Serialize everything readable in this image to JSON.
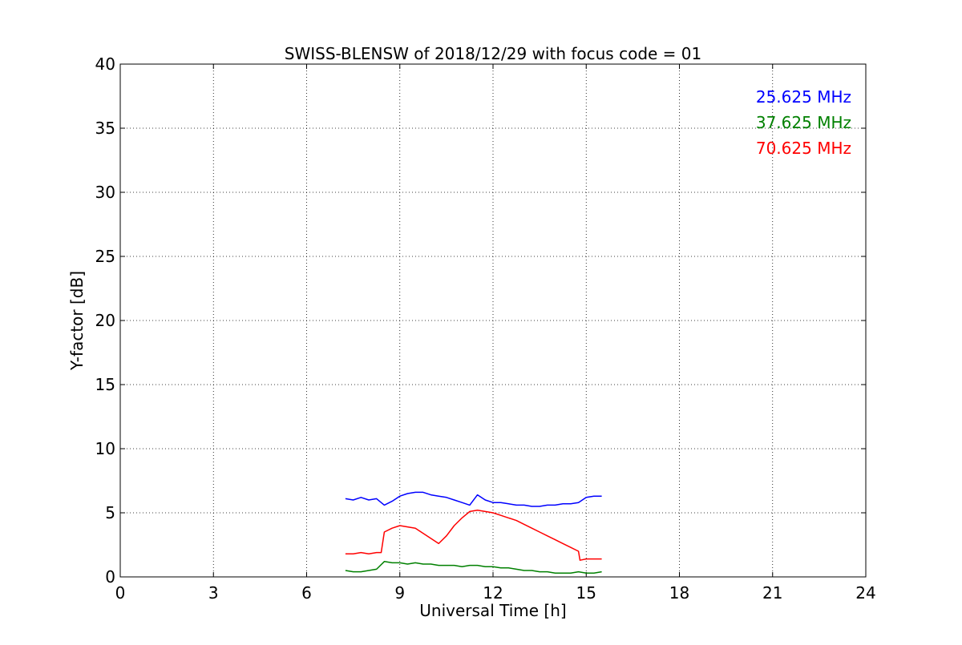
{
  "chart_data": {
    "type": "line",
    "title": "SWISS-BLENSW of 2018/12/29 with focus code = 01",
    "xlabel": "Universal Time [h]",
    "ylabel": "Y-factor [dB]",
    "xlim": [
      0,
      24
    ],
    "ylim": [
      0,
      40
    ],
    "x_ticks": [
      0,
      3,
      6,
      9,
      12,
      15,
      18,
      21,
      24
    ],
    "y_ticks": [
      0,
      5,
      10,
      15,
      20,
      25,
      30,
      35,
      40
    ],
    "grid": true,
    "legend_placement": "top-right",
    "series": [
      {
        "name": "25.625 MHz",
        "color": "#0000ff",
        "x": [
          7.25,
          7.5,
          7.75,
          8.0,
          8.25,
          8.5,
          8.75,
          9.0,
          9.25,
          9.5,
          9.75,
          10.0,
          10.25,
          10.5,
          10.75,
          11.0,
          11.25,
          11.5,
          11.75,
          12.0,
          12.25,
          12.5,
          12.75,
          13.0,
          13.25,
          13.5,
          13.75,
          14.0,
          14.25,
          14.5,
          14.75,
          15.0,
          15.25,
          15.5
        ],
        "y": [
          6.1,
          6.0,
          6.2,
          6.0,
          6.1,
          5.6,
          5.9,
          6.3,
          6.5,
          6.6,
          6.6,
          6.4,
          6.3,
          6.2,
          6.0,
          5.8,
          5.6,
          6.4,
          6.0,
          5.8,
          5.8,
          5.7,
          5.6,
          5.6,
          5.5,
          5.5,
          5.6,
          5.6,
          5.7,
          5.7,
          5.8,
          6.2,
          6.3,
          6.3
        ]
      },
      {
        "name": "37.625 MHz",
        "color": "#008000",
        "x": [
          7.25,
          7.5,
          7.75,
          8.0,
          8.25,
          8.5,
          8.75,
          9.0,
          9.25,
          9.5,
          9.75,
          10.0,
          10.25,
          10.5,
          10.75,
          11.0,
          11.25,
          11.5,
          11.75,
          12.0,
          12.25,
          12.5,
          12.75,
          13.0,
          13.25,
          13.5,
          13.75,
          14.0,
          14.25,
          14.5,
          14.75,
          15.0,
          15.25,
          15.5
        ],
        "y": [
          0.5,
          0.4,
          0.4,
          0.5,
          0.6,
          1.2,
          1.1,
          1.1,
          1.0,
          1.1,
          1.0,
          1.0,
          0.9,
          0.9,
          0.9,
          0.8,
          0.9,
          0.9,
          0.8,
          0.8,
          0.7,
          0.7,
          0.6,
          0.5,
          0.5,
          0.4,
          0.4,
          0.3,
          0.3,
          0.3,
          0.4,
          0.3,
          0.3,
          0.4
        ]
      },
      {
        "name": "70.625 MHz",
        "color": "#ff0000",
        "x": [
          7.25,
          7.5,
          7.75,
          8.0,
          8.25,
          8.4,
          8.5,
          8.75,
          9.0,
          9.25,
          9.5,
          9.75,
          10.0,
          10.25,
          10.5,
          10.75,
          11.0,
          11.25,
          11.5,
          11.75,
          12.0,
          12.25,
          12.5,
          12.75,
          13.0,
          13.25,
          13.5,
          13.75,
          14.0,
          14.25,
          14.5,
          14.75,
          14.8,
          15.0,
          15.25,
          15.5
        ],
        "y": [
          1.8,
          1.8,
          1.9,
          1.8,
          1.9,
          1.9,
          3.5,
          3.8,
          4.0,
          3.9,
          3.8,
          3.4,
          3.0,
          2.6,
          3.2,
          4.0,
          4.6,
          5.1,
          5.2,
          5.1,
          5.0,
          4.8,
          4.6,
          4.4,
          4.1,
          3.8,
          3.5,
          3.2,
          2.9,
          2.6,
          2.3,
          2.0,
          1.3,
          1.4,
          1.4,
          1.4
        ]
      }
    ]
  }
}
